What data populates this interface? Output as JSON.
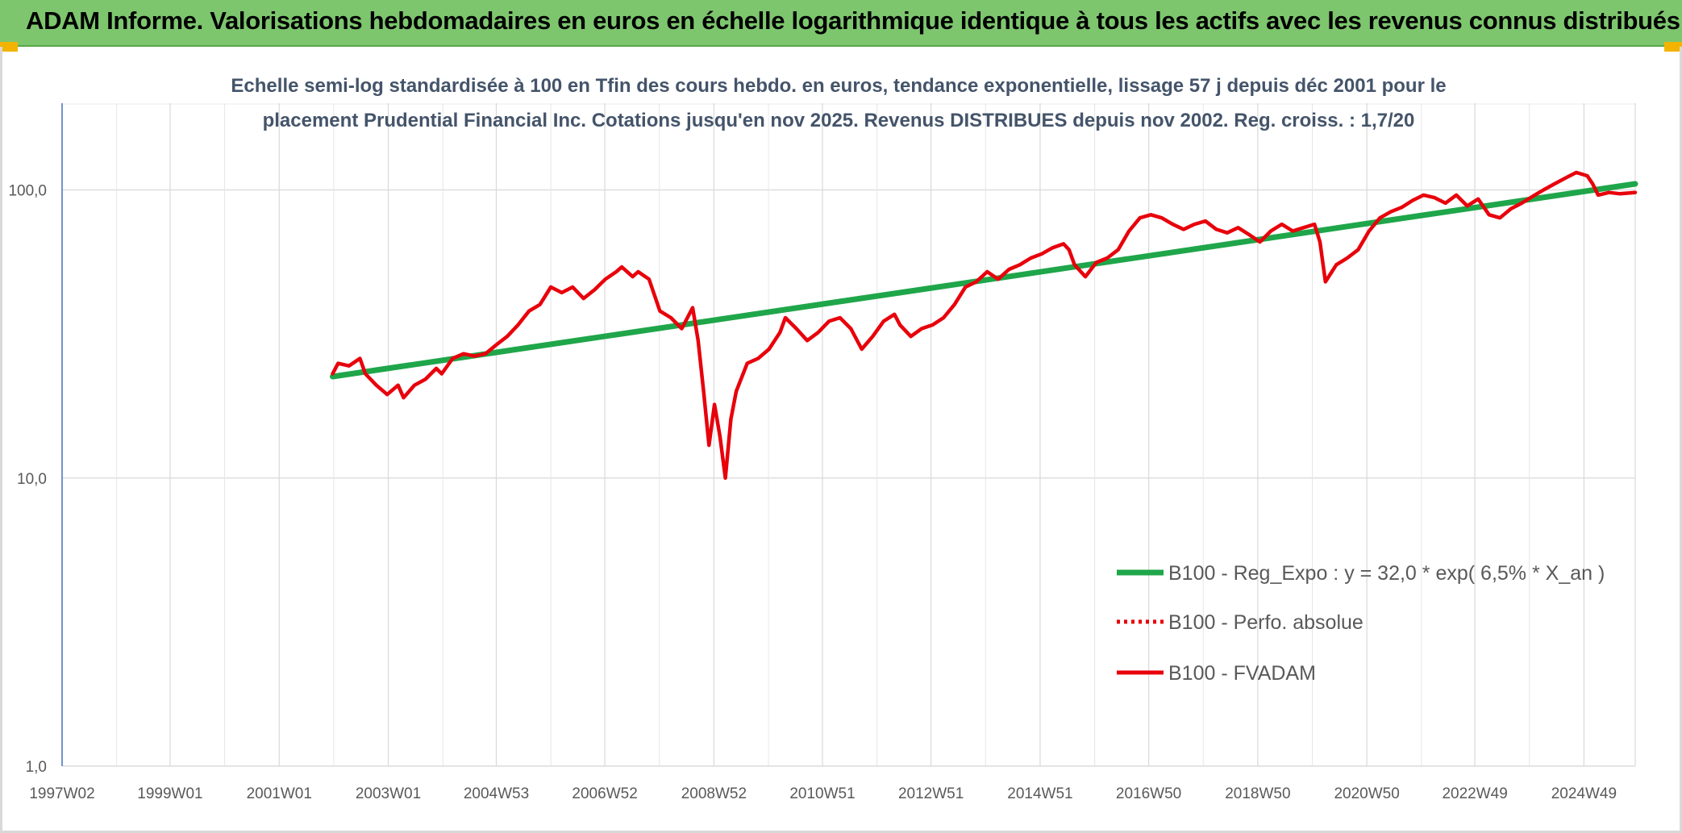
{
  "header": {
    "title": "ADAM Informe. Valorisations hebdomadaires en euros en échelle logarithmique identique à tous les actifs avec les revenus connus distribués"
  },
  "colors": {
    "banner": "#7dc66e",
    "trend": "#1fa64a",
    "fvadam": "#e8000b",
    "perfo": "#e8000b",
    "grid": "#d9d9d9"
  },
  "chart_data": {
    "type": "line",
    "title": "",
    "subtitle_lines": [
      "Echelle semi-log standardisée à 100 en Tfin des cours hebdo. en euros, tendance exponentielle, lissage 57 j depuis déc 2001 pour le",
      "placement Prudential Financial Inc. Cotations jusqu'en nov 2025. Revenus DISTRIBUES depuis nov 2002. Reg. croiss. : 1,7/20"
    ],
    "y_scale": "log",
    "ylim": [
      1,
      200
    ],
    "y_ticks": [
      {
        "value": 1,
        "label": "1,0"
      },
      {
        "value": 10,
        "label": "10,0"
      },
      {
        "value": 100,
        "label": "100,0"
      }
    ],
    "xlim": [
      1997.04,
      2025.88
    ],
    "x_ticks": [
      {
        "value": 1997.04,
        "label": "1997W02"
      },
      {
        "value": 1999.02,
        "label": "1999W01"
      },
      {
        "value": 2001.02,
        "label": "2001W01"
      },
      {
        "value": 2003.02,
        "label": "2003W01"
      },
      {
        "value": 2005.0,
        "label": "2004W53"
      },
      {
        "value": 2006.99,
        "label": "2006W52"
      },
      {
        "value": 2008.99,
        "label": "2008W52"
      },
      {
        "value": 2010.98,
        "label": "2010W51"
      },
      {
        "value": 2012.97,
        "label": "2012W51"
      },
      {
        "value": 2014.97,
        "label": "2014W51"
      },
      {
        "value": 2016.96,
        "label": "2016W50"
      },
      {
        "value": 2018.96,
        "label": "2018W50"
      },
      {
        "value": 2020.96,
        "label": "2020W50"
      },
      {
        "value": 2022.94,
        "label": "2022W49"
      },
      {
        "value": 2024.94,
        "label": "2024W49"
      }
    ],
    "grid": true,
    "legend_position": "right",
    "series": [
      {
        "name": "B100 - Reg_Expo : y = 32,0 * exp( 6,5% *  X_an )",
        "style": "solid",
        "points": [
          [
            2002.0,
            22.5
          ],
          [
            2025.88,
            105
          ]
        ]
      },
      {
        "name": "B100 - Perfo. absolue",
        "style": "dotted",
        "points": []
      },
      {
        "name": "B100 - FVADAM",
        "style": "solid",
        "points": [
          [
            2002.0,
            23
          ],
          [
            2002.1,
            25
          ],
          [
            2002.3,
            24.5
          ],
          [
            2002.5,
            26
          ],
          [
            2002.6,
            23
          ],
          [
            2002.8,
            21
          ],
          [
            2003.0,
            19.5
          ],
          [
            2003.2,
            21
          ],
          [
            2003.3,
            19
          ],
          [
            2003.5,
            21
          ],
          [
            2003.7,
            22
          ],
          [
            2003.9,
            24
          ],
          [
            2004.0,
            23
          ],
          [
            2004.2,
            26
          ],
          [
            2004.4,
            27
          ],
          [
            2004.6,
            26.5
          ],
          [
            2004.8,
            27
          ],
          [
            2005.0,
            29
          ],
          [
            2005.2,
            31
          ],
          [
            2005.4,
            34
          ],
          [
            2005.6,
            38
          ],
          [
            2005.8,
            40
          ],
          [
            2006.0,
            46
          ],
          [
            2006.2,
            44
          ],
          [
            2006.4,
            46
          ],
          [
            2006.6,
            42
          ],
          [
            2006.8,
            45
          ],
          [
            2007.0,
            49
          ],
          [
            2007.2,
            52
          ],
          [
            2007.3,
            54
          ],
          [
            2007.5,
            50
          ],
          [
            2007.6,
            52
          ],
          [
            2007.8,
            49
          ],
          [
            2008.0,
            38
          ],
          [
            2008.2,
            36
          ],
          [
            2008.4,
            33
          ],
          [
            2008.6,
            39
          ],
          [
            2008.7,
            30
          ],
          [
            2008.8,
            20
          ],
          [
            2008.9,
            13
          ],
          [
            2009.0,
            18
          ],
          [
            2009.1,
            14
          ],
          [
            2009.2,
            10
          ],
          [
            2009.3,
            16
          ],
          [
            2009.4,
            20
          ],
          [
            2009.6,
            25
          ],
          [
            2009.8,
            26
          ],
          [
            2010.0,
            28
          ],
          [
            2010.2,
            32
          ],
          [
            2010.3,
            36
          ],
          [
            2010.5,
            33
          ],
          [
            2010.7,
            30
          ],
          [
            2010.9,
            32
          ],
          [
            2011.1,
            35
          ],
          [
            2011.3,
            36
          ],
          [
            2011.5,
            33
          ],
          [
            2011.7,
            28
          ],
          [
            2011.9,
            31
          ],
          [
            2012.1,
            35
          ],
          [
            2012.3,
            37
          ],
          [
            2012.4,
            34
          ],
          [
            2012.6,
            31
          ],
          [
            2012.8,
            33
          ],
          [
            2013.0,
            34
          ],
          [
            2013.2,
            36
          ],
          [
            2013.4,
            40
          ],
          [
            2013.6,
            46
          ],
          [
            2013.8,
            48
          ],
          [
            2014.0,
            52
          ],
          [
            2014.2,
            49
          ],
          [
            2014.4,
            53
          ],
          [
            2014.6,
            55
          ],
          [
            2014.8,
            58
          ],
          [
            2015.0,
            60
          ],
          [
            2015.2,
            63
          ],
          [
            2015.4,
            65
          ],
          [
            2015.5,
            62
          ],
          [
            2015.6,
            55
          ],
          [
            2015.8,
            50
          ],
          [
            2016.0,
            56
          ],
          [
            2016.2,
            58
          ],
          [
            2016.4,
            62
          ],
          [
            2016.6,
            72
          ],
          [
            2016.8,
            80
          ],
          [
            2017.0,
            82
          ],
          [
            2017.2,
            80
          ],
          [
            2017.4,
            76
          ],
          [
            2017.6,
            73
          ],
          [
            2017.8,
            76
          ],
          [
            2018.0,
            78
          ],
          [
            2018.2,
            73
          ],
          [
            2018.4,
            71
          ],
          [
            2018.6,
            74
          ],
          [
            2018.8,
            70
          ],
          [
            2019.0,
            66
          ],
          [
            2019.2,
            72
          ],
          [
            2019.4,
            76
          ],
          [
            2019.6,
            72
          ],
          [
            2019.8,
            74
          ],
          [
            2020.0,
            76
          ],
          [
            2020.1,
            66
          ],
          [
            2020.2,
            48
          ],
          [
            2020.4,
            55
          ],
          [
            2020.6,
            58
          ],
          [
            2020.8,
            62
          ],
          [
            2021.0,
            72
          ],
          [
            2021.2,
            80
          ],
          [
            2021.4,
            84
          ],
          [
            2021.6,
            87
          ],
          [
            2021.8,
            92
          ],
          [
            2022.0,
            96
          ],
          [
            2022.2,
            94
          ],
          [
            2022.4,
            90
          ],
          [
            2022.6,
            96
          ],
          [
            2022.8,
            88
          ],
          [
            2023.0,
            93
          ],
          [
            2023.2,
            82
          ],
          [
            2023.4,
            80
          ],
          [
            2023.6,
            86
          ],
          [
            2023.8,
            90
          ],
          [
            2024.0,
            95
          ],
          [
            2024.2,
            100
          ],
          [
            2024.4,
            105
          ],
          [
            2024.6,
            110
          ],
          [
            2024.8,
            115
          ],
          [
            2025.0,
            112
          ],
          [
            2025.1,
            105
          ],
          [
            2025.2,
            96
          ],
          [
            2025.4,
            98
          ],
          [
            2025.6,
            97
          ],
          [
            2025.88,
            98
          ]
        ]
      }
    ]
  }
}
